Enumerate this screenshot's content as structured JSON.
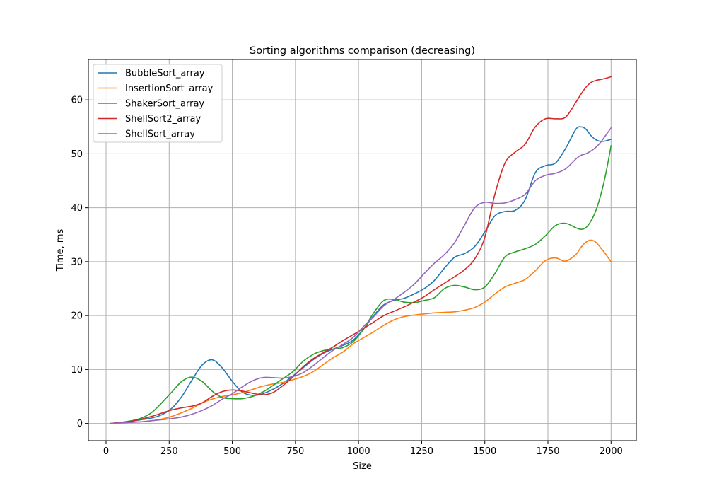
{
  "chart_data": {
    "type": "line",
    "title": "Sorting algorithms comparison (decreasing)",
    "xlabel": "Size",
    "ylabel": "Time, ms",
    "xlim": [
      -70,
      2100
    ],
    "ylim": [
      -3.2,
      67.5
    ],
    "xticks": [
      0,
      250,
      500,
      750,
      1000,
      1250,
      1500,
      1750,
      2000
    ],
    "yticks": [
      0,
      10,
      20,
      30,
      40,
      50,
      60
    ],
    "grid": true,
    "legend_position": "top-left",
    "x": [
      20,
      60,
      100,
      140,
      180,
      220,
      260,
      300,
      340,
      380,
      420,
      460,
      500,
      540,
      580,
      620,
      660,
      700,
      740,
      780,
      820,
      860,
      900,
      940,
      980,
      1020,
      1060,
      1100,
      1140,
      1180,
      1220,
      1260,
      1300,
      1340,
      1380,
      1420,
      1460,
      1500,
      1540,
      1580,
      1620,
      1660,
      1700,
      1740,
      1780,
      1820,
      1860,
      1880,
      1900,
      1920,
      1940,
      1960,
      1980,
      2000
    ],
    "series": [
      {
        "name": "BubbleSort_array",
        "color": "#1f77b4",
        "values": [
          0,
          0.2,
          0.4,
          0.7,
          1.0,
          1.6,
          2.8,
          5.0,
          8.0,
          10.8,
          11.8,
          10.3,
          7.8,
          5.8,
          5.2,
          5.5,
          6.3,
          7.4,
          8.8,
          10.3,
          11.8,
          13.0,
          13.8,
          14.5,
          15.5,
          17.5,
          20.0,
          22.0,
          22.8,
          23.2,
          24.0,
          25.0,
          26.5,
          28.8,
          30.8,
          31.5,
          32.8,
          35.5,
          38.5,
          39.3,
          39.5,
          41.5,
          46.5,
          47.8,
          48.3,
          51.0,
          54.5,
          55.0,
          54.6,
          53.4,
          52.6,
          52.3,
          52.4,
          52.7
        ]
      },
      {
        "name": "InsertionSort_array",
        "color": "#ff7f0e",
        "values": [
          0,
          0.1,
          0.2,
          0.3,
          0.5,
          0.8,
          1.3,
          2.0,
          2.8,
          3.8,
          4.5,
          5.0,
          5.3,
          5.7,
          6.3,
          6.9,
          7.3,
          7.6,
          8.1,
          8.7,
          9.6,
          10.9,
          12.2,
          13.3,
          14.8,
          15.9,
          17.0,
          18.2,
          19.2,
          19.8,
          20.1,
          20.3,
          20.5,
          20.6,
          20.7,
          21.0,
          21.5,
          22.5,
          24.0,
          25.3,
          26.0,
          26.7,
          28.3,
          30.2,
          30.7,
          30.1,
          31.3,
          32.6,
          33.6,
          34.0,
          33.6,
          32.5,
          31.3,
          30.0
        ]
      },
      {
        "name": "ShakerSort_array",
        "color": "#2ca02c",
        "values": [
          0,
          0.2,
          0.5,
          1.0,
          2.0,
          3.8,
          5.8,
          7.8,
          8.6,
          7.8,
          6.0,
          4.8,
          4.6,
          4.6,
          5.0,
          5.8,
          7.0,
          8.3,
          9.6,
          11.5,
          12.8,
          13.5,
          13.8,
          14.1,
          15.2,
          17.5,
          20.5,
          22.8,
          23.0,
          22.5,
          22.4,
          22.8,
          23.3,
          25.0,
          25.6,
          25.3,
          24.8,
          25.3,
          27.8,
          30.9,
          31.8,
          32.4,
          33.2,
          34.8,
          36.7,
          37.1,
          36.3,
          36.0,
          36.3,
          37.5,
          39.5,
          42.5,
          46.5,
          51.5
        ]
      },
      {
        "name": "ShellSort2_array",
        "color": "#d62728",
        "values": [
          0,
          0.2,
          0.4,
          0.8,
          1.3,
          1.9,
          2.5,
          2.9,
          3.2,
          3.8,
          5.0,
          5.9,
          6.2,
          6.0,
          5.6,
          5.3,
          5.7,
          7.0,
          8.6,
          10.5,
          12.0,
          13.1,
          14.2,
          15.4,
          16.5,
          17.6,
          18.8,
          20.0,
          20.8,
          21.6,
          22.5,
          23.5,
          24.8,
          26.0,
          27.2,
          28.5,
          30.5,
          34.5,
          42.5,
          48.3,
          50.3,
          51.8,
          55.0,
          56.5,
          56.5,
          56.8,
          59.5,
          61.0,
          62.3,
          63.2,
          63.6,
          63.8,
          64.0,
          64.3
        ]
      },
      {
        "name": "ShellSort_array",
        "color": "#9467bd",
        "values": [
          0,
          0.1,
          0.2,
          0.3,
          0.5,
          0.7,
          0.9,
          1.2,
          1.7,
          2.4,
          3.3,
          4.5,
          5.5,
          6.8,
          7.9,
          8.5,
          8.5,
          8.4,
          8.7,
          9.4,
          10.7,
          12.2,
          13.6,
          14.7,
          16.0,
          18.0,
          19.8,
          21.8,
          23.0,
          24.3,
          25.8,
          27.8,
          29.7,
          31.3,
          33.5,
          36.8,
          40.0,
          41.0,
          40.8,
          40.9,
          41.5,
          42.5,
          45.0,
          46.0,
          46.4,
          47.2,
          49.0,
          49.7,
          50.0,
          50.5,
          51.2,
          52.2,
          53.5,
          54.8
        ]
      }
    ]
  }
}
